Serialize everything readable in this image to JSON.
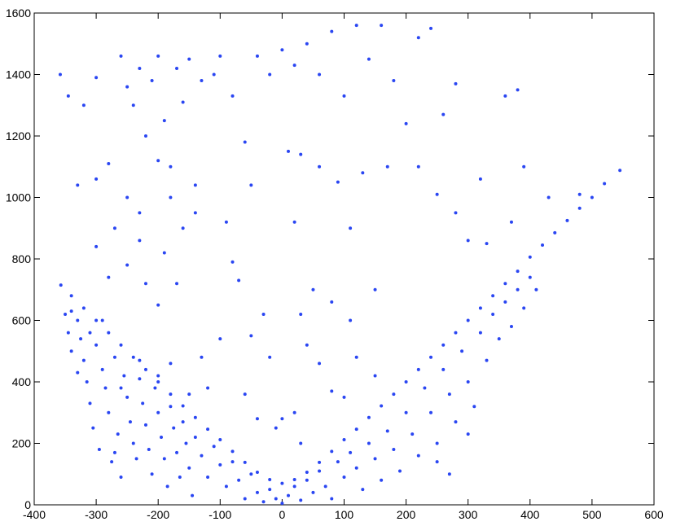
{
  "chart_data": {
    "type": "scatter",
    "color": "#2a46f2",
    "xlim": [
      -400,
      600
    ],
    "xticks": [
      -400,
      -300,
      -200,
      -100,
      0,
      100,
      200,
      300,
      400,
      500,
      600
    ],
    "ylim": [
      0,
      1600
    ],
    "yticks": [
      0,
      200,
      400,
      600,
      800,
      1000,
      1200,
      1400,
      1600
    ],
    "x": [
      -357,
      -340,
      -320,
      -300,
      -280,
      -260,
      -240,
      -220,
      -200,
      -180,
      -160,
      -140,
      -120,
      -100,
      -80,
      -60,
      -40,
      -20,
      0,
      20,
      40,
      60,
      80,
      100,
      120,
      140,
      160,
      180,
      200,
      220,
      240,
      260,
      280,
      300,
      320,
      340,
      360,
      380,
      400,
      420,
      440,
      460,
      480,
      500,
      520,
      545,
      -350,
      -345,
      -340,
      -330,
      -325,
      -320,
      -315,
      -310,
      -305,
      -300,
      -295,
      -290,
      -285,
      -280,
      -275,
      -270,
      -265,
      -260,
      -255,
      -250,
      -245,
      -240,
      -235,
      -230,
      -225,
      -220,
      -215,
      -210,
      -205,
      -200,
      -195,
      -190,
      -185,
      -180,
      -175,
      -170,
      -165,
      -160,
      -155,
      -150,
      -145,
      -140,
      -130,
      -120,
      -110,
      -100,
      -90,
      -80,
      -70,
      -60,
      -50,
      -40,
      -30,
      -20,
      -10,
      0,
      10,
      20,
      30,
      40,
      50,
      60,
      70,
      80,
      90,
      100,
      110,
      120,
      130,
      140,
      150,
      160,
      170,
      180,
      190,
      200,
      210,
      220,
      230,
      240,
      250,
      260,
      270,
      280,
      290,
      300,
      310,
      320,
      330,
      340,
      350,
      360,
      370,
      380,
      390,
      400,
      410,
      300,
      270,
      250,
      -310,
      -290,
      -260,
      -230,
      -200,
      -330,
      -340,
      -270,
      -180,
      -150,
      -100,
      -50,
      -20,
      0,
      20,
      40,
      60,
      80,
      100,
      120,
      150,
      -60,
      -120,
      -130,
      30,
      80,
      110,
      -30,
      -70,
      50,
      150,
      -80,
      -90,
      20,
      110,
      -10,
      30,
      -40,
      -358,
      -345,
      -320,
      -300,
      -280,
      -260,
      -250,
      -240,
      -230,
      -220,
      -210,
      -200,
      -190,
      -180,
      -170,
      -160,
      -150,
      -140,
      -130,
      -110,
      -100,
      -80,
      -60,
      -50,
      -40,
      -20,
      0,
      20,
      40,
      60,
      80,
      100,
      120,
      140,
      160,
      180,
      200,
      220,
      240,
      260,
      280,
      320,
      360,
      380,
      390,
      -330,
      -300,
      -270,
      -250,
      -230,
      -200,
      -180,
      -160,
      -250,
      -220,
      -280,
      -200,
      -170,
      10,
      30,
      60,
      90,
      130,
      170,
      220,
      250,
      280,
      300,
      330,
      370,
      430,
      480,
      -300,
      -230,
      -190,
      -140
    ],
    "values": [
      715,
      680,
      640,
      600,
      560,
      520,
      480,
      440,
      400,
      360,
      322,
      284,
      246,
      212,
      174,
      138,
      106,
      82,
      70,
      82,
      106,
      138,
      174,
      212,
      246,
      284,
      322,
      360,
      400,
      440,
      480,
      520,
      560,
      600,
      640,
      680,
      720,
      760,
      806,
      845,
      885,
      925,
      965,
      1000,
      1045,
      1088,
      620,
      560,
      500,
      600,
      540,
      470,
      400,
      330,
      250,
      520,
      180,
      440,
      380,
      300,
      140,
      480,
      230,
      90,
      420,
      350,
      270,
      200,
      150,
      410,
      330,
      260,
      180,
      100,
      380,
      300,
      220,
      150,
      60,
      320,
      250,
      170,
      90,
      270,
      200,
      120,
      30,
      220,
      160,
      90,
      190,
      130,
      60,
      140,
      80,
      20,
      100,
      40,
      10,
      50,
      20,
      5,
      30,
      60,
      15,
      80,
      40,
      110,
      60,
      20,
      140,
      90,
      170,
      120,
      50,
      200,
      150,
      80,
      240,
      180,
      110,
      300,
      230,
      160,
      380,
      300,
      200,
      440,
      360,
      270,
      500,
      400,
      320,
      560,
      470,
      620,
      540,
      660,
      580,
      700,
      640,
      740,
      700,
      230,
      100,
      140,
      560,
      600,
      380,
      470,
      420,
      430,
      630,
      170,
      460,
      360,
      540,
      550,
      480,
      280,
      300,
      520,
      460,
      370,
      350,
      480,
      420,
      360,
      380,
      480,
      620,
      660,
      600,
      620,
      730,
      700,
      700,
      790,
      920,
      920,
      900,
      250,
      200,
      280,
      1400,
      1330,
      1300,
      1390,
      1110,
      1460,
      1360,
      1300,
      1420,
      1200,
      1380,
      1460,
      1250,
      1100,
      1420,
      1310,
      1450,
      1040,
      1380,
      1400,
      1460,
      1330,
      1180,
      1040,
      1460,
      1400,
      1480,
      1430,
      1500,
      1400,
      1540,
      1330,
      1560,
      1450,
      1560,
      1380,
      1240,
      1520,
      1550,
      1270,
      1370,
      1060,
      1330,
      1350,
      1100,
      1040,
      1060,
      900,
      1000,
      950,
      1120,
      1000,
      900,
      780,
      720,
      740,
      650,
      720,
      1150,
      1140,
      1100,
      1050,
      1080,
      1100,
      1100,
      1010,
      950,
      860,
      850,
      920,
      1000,
      1010,
      840,
      860,
      820,
      950
    ]
  }
}
